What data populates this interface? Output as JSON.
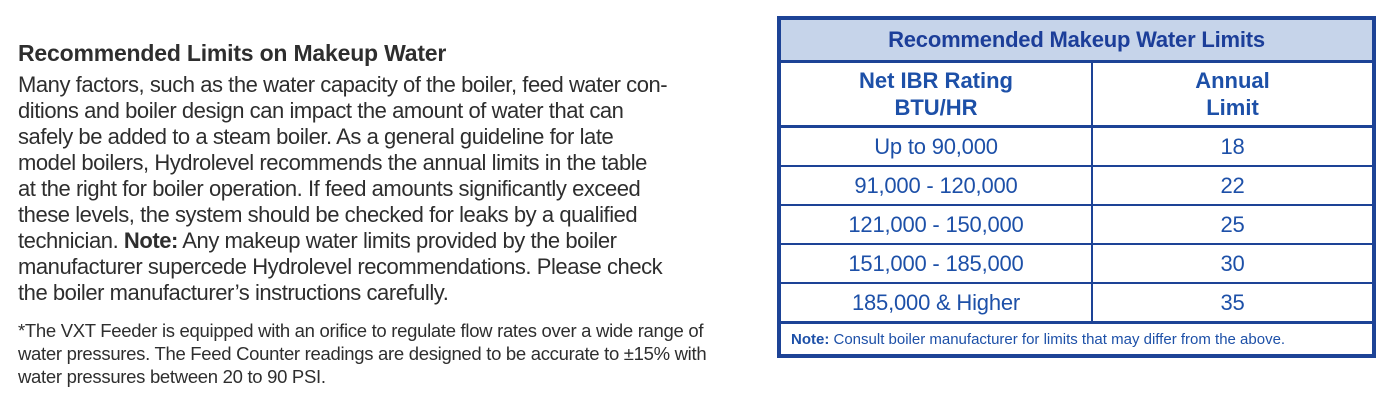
{
  "left": {
    "heading": "Recommended Limits on Makeup Water",
    "paragraph_lines": [
      [
        "Many factors, such as the water capacity of the boiler, feed water con-"
      ],
      [
        "ditions and boiler design can impact the amount of water that can"
      ],
      [
        "safely be added to a steam boiler. As a general guideline for late"
      ],
      [
        "model boilers, Hydrolevel recommends the annual limits in the table"
      ],
      [
        "at the right for boiler operation. If feed amounts significantly exceed"
      ],
      [
        "these levels, the system should be checked for leaks by a qualified"
      ],
      [
        "technician. ",
        {
          "b": "Note:"
        },
        " Any makeup water limits provided by the boiler"
      ],
      [
        "manufacturer supercede Hydrolevel recommendations. Please check"
      ],
      [
        "the boiler manufacturer’s instructions carefully."
      ]
    ],
    "footnote_lines": [
      "*The VXT Feeder is equipped with an orifice to regulate flow rates over a wide range of",
      "water pressures. The Feed Counter readings are designed to be accurate to ±15% with",
      "water pressures between 20 to 90 PSI."
    ]
  },
  "table": {
    "title": "Recommended Makeup Water Limits",
    "columns": [
      {
        "id": "rating",
        "label_lines": [
          "Net IBR Rating",
          "BTU/HR"
        ]
      },
      {
        "id": "limit",
        "label_lines": [
          "Annual",
          "Limit"
        ]
      }
    ],
    "rows": [
      {
        "rating": "Up to 90,000",
        "limit": "18"
      },
      {
        "rating": "91,000 - 120,000",
        "limit": "22"
      },
      {
        "rating": "121,000 - 150,000",
        "limit": "25"
      },
      {
        "rating": "151,000 - 185,000",
        "limit": "30"
      },
      {
        "rating": "185,000 & Higher",
        "limit": "35"
      }
    ],
    "note": {
      "bold": "Note:",
      "text": " Consult boiler manufacturer for limits that may differ from the above."
    },
    "colors": {
      "border": "#1d4396",
      "title_bg": "#c6d4ea",
      "title_text": "#1c3e99",
      "cell_text": "#1d50a8"
    }
  }
}
